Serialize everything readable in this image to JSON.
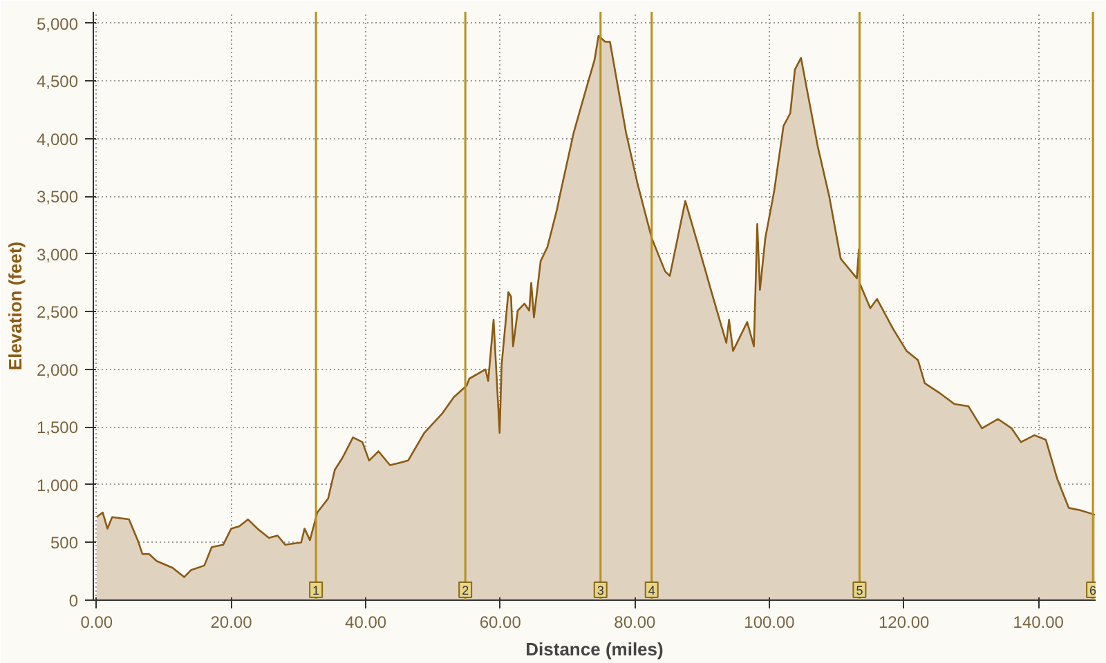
{
  "chart_data": {
    "type": "area",
    "xlabel": "Distance (miles)",
    "ylabel": "Elevation (feet)",
    "xlim": [
      -0.5,
      148.5
    ],
    "ylim": [
      0,
      5100
    ],
    "xticks": [
      {
        "value": 0,
        "label": "0.00"
      },
      {
        "value": 20,
        "label": "20.00"
      },
      {
        "value": 40,
        "label": "40.00"
      },
      {
        "value": 60,
        "label": "60.00"
      },
      {
        "value": 80,
        "label": "80.00"
      },
      {
        "value": 100,
        "label": "100.00"
      },
      {
        "value": 120,
        "label": "120.00"
      },
      {
        "value": 140,
        "label": "140.00"
      }
    ],
    "yticks": [
      0,
      {
        "value": 500,
        "label": "500"
      },
      {
        "value": 1000,
        "label": "1,000"
      },
      {
        "value": 1500,
        "label": "1,500"
      },
      {
        "value": 2000,
        "label": "2,000"
      },
      {
        "value": 2500,
        "label": "2,500"
      },
      {
        "value": 3000,
        "label": "3,000"
      },
      {
        "value": 3500,
        "label": "3,500"
      },
      {
        "value": 4000,
        "label": "4,000"
      },
      {
        "value": 4500,
        "label": "4,500"
      },
      {
        "value": 5000,
        "label": "5,000"
      }
    ],
    "grid": true,
    "series": [
      {
        "color": "#8b5a14",
        "x": [
          0,
          0.9,
          1.6,
          2.3,
          4.8,
          6.1,
          6.8,
          7.8,
          8.9,
          11.3,
          13.0,
          14.0,
          16.0,
          17.1,
          18.8,
          20.0,
          21.2,
          22.5,
          23.9,
          25.6,
          26.9,
          28.0,
          30.4,
          30.9,
          31.7,
          32.8,
          34.4,
          35.4,
          36.5,
          38.1,
          39.5,
          40.5,
          41.9,
          43.6,
          45.0,
          46.3,
          48.7,
          51.4,
          53.1,
          55.0,
          55.4,
          57.8,
          58.2,
          59.0,
          59.9,
          60.2,
          61.2,
          61.6,
          61.9,
          62.6,
          63.6,
          64.3,
          64.6,
          65.0,
          66.0,
          67.0,
          68.4,
          68.9,
          70.9,
          72.9,
          74.0,
          74.6,
          75.6,
          76.3,
          78.7,
          80.4,
          82.5,
          84.5,
          85.2,
          85.8,
          87.5,
          89.2,
          91.6,
          93.6,
          94.0,
          94.6,
          96.7,
          97.7,
          98.2,
          98.6,
          99.4,
          100.7,
          102.1,
          103.1,
          103.8,
          104.7,
          105.8,
          107.2,
          108.9,
          110.6,
          113.0,
          113.3,
          113.4,
          115.0,
          116.0,
          118.4,
          120.4,
          122.1,
          123.1,
          125.2,
          127.5,
          129.6,
          131.6,
          134.0,
          136.0,
          137.4,
          139.4,
          141.1,
          142.8,
          144.5,
          146.2,
          148.4
        ],
        "values": [
          720,
          760,
          620,
          720,
          700,
          520,
          400,
          400,
          340,
          280,
          200,
          260,
          300,
          460,
          480,
          620,
          640,
          700,
          620,
          540,
          560,
          480,
          500,
          620,
          520,
          760,
          880,
          1130,
          1230,
          1410,
          1370,
          1210,
          1290,
          1170,
          1190,
          1210,
          1450,
          1620,
          1760,
          1860,
          1920,
          2000,
          1900,
          2430,
          1450,
          2040,
          2670,
          2630,
          2200,
          2510,
          2570,
          2510,
          2750,
          2450,
          2940,
          3060,
          3380,
          3520,
          4050,
          4460,
          4680,
          4890,
          4840,
          4840,
          4050,
          3610,
          3140,
          2850,
          2810,
          2980,
          3460,
          3120,
          2630,
          2230,
          2430,
          2160,
          2410,
          2200,
          3260,
          2690,
          3140,
          3540,
          4110,
          4220,
          4600,
          4700,
          4360,
          3930,
          3500,
          2960,
          2790,
          3040,
          2750,
          2530,
          2610,
          2350,
          2160,
          2080,
          1880,
          1800,
          1700,
          1680,
          1490,
          1570,
          1490,
          1370,
          1430,
          1390,
          1050,
          800,
          780,
          740
        ]
      }
    ],
    "ref_lines": [
      {
        "axis": "x",
        "value": 32.6,
        "color": "#b8901e"
      },
      {
        "axis": "x",
        "value": 54.8,
        "color": "#b8901e"
      },
      {
        "axis": "x",
        "value": 74.9,
        "color": "#b8901e"
      },
      {
        "axis": "x",
        "value": 82.5,
        "color": "#b8901e"
      },
      {
        "axis": "x",
        "value": 113.4,
        "color": "#b8901e"
      },
      {
        "axis": "x",
        "value": 148.1,
        "color": "#b8901e"
      }
    ],
    "annotations": [
      {
        "text": "1",
        "x": 32.6,
        "y": 0
      },
      {
        "text": "2",
        "x": 54.8,
        "y": 0
      },
      {
        "text": "3",
        "x": 74.9,
        "y": 0
      },
      {
        "text": "4",
        "x": 82.5,
        "y": 0
      },
      {
        "text": "5",
        "x": 113.4,
        "y": 0
      },
      {
        "text": "6",
        "x": 148.1,
        "y": 0
      }
    ]
  }
}
